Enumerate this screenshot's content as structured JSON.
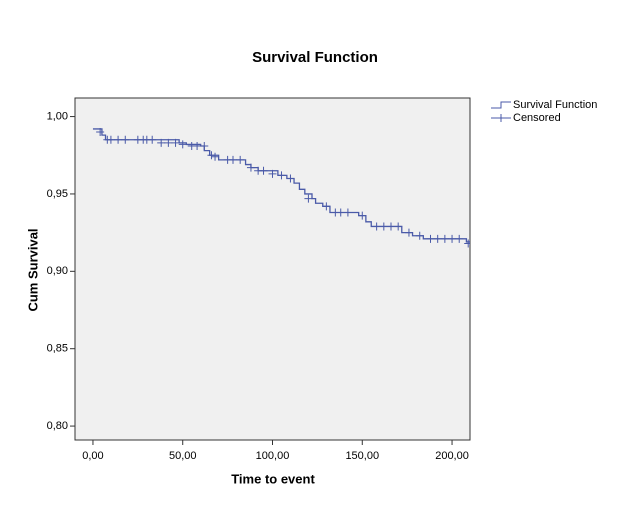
{
  "chart_data": {
    "type": "line",
    "drawstyle": "steps-post",
    "title": "Survival Function",
    "xlabel": "Time to event",
    "ylabel": "Cum Survival",
    "xlim": [
      -10,
      210
    ],
    "ylim": [
      0.791,
      1.012
    ],
    "xticks": [
      {
        "value": 0,
        "label": "0,00"
      },
      {
        "value": 50,
        "label": "50,00"
      },
      {
        "value": 100,
        "label": "100,00"
      },
      {
        "value": 150,
        "label": "150,00"
      },
      {
        "value": 200,
        "label": "200,00"
      }
    ],
    "yticks": [
      {
        "value": 0.8,
        "label": "0,80"
      },
      {
        "value": 0.85,
        "label": "0,85"
      },
      {
        "value": 0.9,
        "label": "0,90"
      },
      {
        "value": 0.95,
        "label": "0,95"
      },
      {
        "value": 1.0,
        "label": "1,00"
      }
    ],
    "grid": false,
    "legend": "right",
    "series": [
      {
        "name": "Survival Function",
        "color": "#4a5aa8",
        "marker": "step",
        "x": [
          0,
          5,
          7,
          48,
          52,
          60,
          62,
          65,
          70,
          85,
          88,
          92,
          103,
          108,
          112,
          115,
          118,
          122,
          124,
          128,
          132,
          148,
          152,
          155,
          172,
          178,
          184,
          208,
          210
        ],
        "values": [
          0.992,
          0.988,
          0.985,
          0.983,
          0.982,
          0.981,
          0.978,
          0.975,
          0.972,
          0.969,
          0.967,
          0.965,
          0.962,
          0.96,
          0.957,
          0.953,
          0.95,
          0.947,
          0.944,
          0.942,
          0.938,
          0.936,
          0.932,
          0.929,
          0.925,
          0.923,
          0.921,
          0.919,
          0.917
        ]
      },
      {
        "name": "Censored",
        "color": "#4a5aa8",
        "marker": "plus",
        "x": [
          4,
          8,
          10,
          14,
          18,
          25,
          28,
          30,
          33,
          38,
          42,
          46,
          50,
          55,
          58,
          62,
          66,
          68,
          75,
          78,
          82,
          88,
          92,
          95,
          100,
          105,
          110,
          120,
          130,
          135,
          138,
          142,
          150,
          158,
          162,
          166,
          170,
          176,
          182,
          188,
          192,
          196,
          200,
          204,
          209
        ],
        "values": [
          0.99,
          0.985,
          0.985,
          0.985,
          0.985,
          0.985,
          0.985,
          0.985,
          0.985,
          0.983,
          0.983,
          0.983,
          0.982,
          0.981,
          0.981,
          0.981,
          0.975,
          0.974,
          0.972,
          0.972,
          0.972,
          0.967,
          0.965,
          0.965,
          0.963,
          0.962,
          0.96,
          0.947,
          0.942,
          0.938,
          0.938,
          0.938,
          0.936,
          0.929,
          0.929,
          0.929,
          0.929,
          0.925,
          0.923,
          0.921,
          0.921,
          0.921,
          0.921,
          0.921,
          0.918
        ]
      }
    ]
  }
}
